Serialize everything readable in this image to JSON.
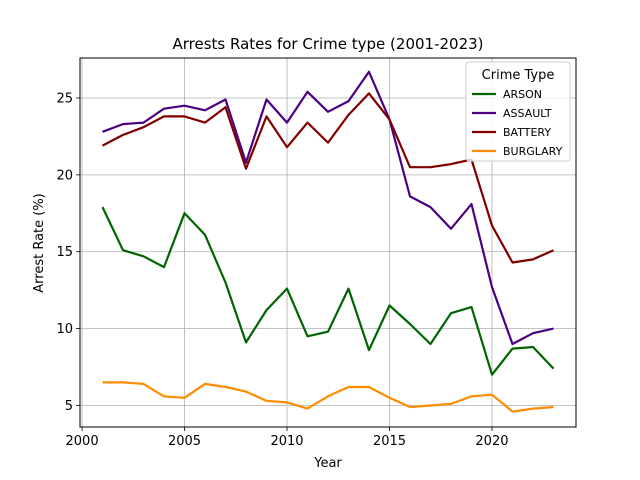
{
  "chart_data": {
    "type": "line",
    "title": "Arrests Rates for Crime type (2001-2023)",
    "xlabel": "Year",
    "ylabel": "Arrest Rate (%)",
    "xlim": [
      1999.9,
      2024.1
    ],
    "ylim": [
      3.6,
      27.6
    ],
    "xticks": [
      2000,
      2005,
      2010,
      2015,
      2020
    ],
    "yticks": [
      5,
      10,
      15,
      20,
      25
    ],
    "grid": true,
    "legend": {
      "title": "Crime Type",
      "placement": "top-right"
    },
    "x": [
      2001,
      2002,
      2003,
      2004,
      2005,
      2006,
      2007,
      2008,
      2009,
      2010,
      2011,
      2012,
      2013,
      2014,
      2015,
      2016,
      2017,
      2018,
      2019,
      2020,
      2021,
      2022,
      2023
    ],
    "series": [
      {
        "name": "ARSON",
        "color": "#006400",
        "values": [
          17.9,
          15.1,
          14.7,
          14.0,
          17.5,
          16.1,
          13.0,
          9.1,
          11.2,
          12.6,
          9.5,
          9.8,
          12.6,
          8.6,
          11.5,
          10.3,
          9.0,
          11.0,
          11.4,
          7.0,
          8.7,
          8.8,
          7.4
        ]
      },
      {
        "name": "ASSAULT",
        "color": "#4b0082",
        "values": [
          22.8,
          23.3,
          23.4,
          24.3,
          24.5,
          24.2,
          24.9,
          20.8,
          24.9,
          23.4,
          25.4,
          24.1,
          24.8,
          26.7,
          23.6,
          18.6,
          17.9,
          16.5,
          18.1,
          12.7,
          9.0,
          9.7,
          10.0
        ]
      },
      {
        "name": "BATTERY",
        "color": "#800000",
        "values": [
          21.9,
          22.6,
          23.1,
          23.8,
          23.8,
          23.4,
          24.4,
          20.4,
          23.8,
          21.8,
          23.4,
          22.1,
          23.9,
          25.3,
          23.6,
          20.5,
          20.5,
          20.7,
          21.0,
          16.7,
          14.3,
          14.5,
          15.1
        ]
      },
      {
        "name": "BURGLARY",
        "color": "#ff8c00",
        "values": [
          6.5,
          6.5,
          6.4,
          5.6,
          5.5,
          6.4,
          6.2,
          5.9,
          5.3,
          5.2,
          4.8,
          5.6,
          6.2,
          6.2,
          5.5,
          4.9,
          5.0,
          5.1,
          5.6,
          5.7,
          4.6,
          4.8,
          4.9
        ]
      }
    ]
  }
}
